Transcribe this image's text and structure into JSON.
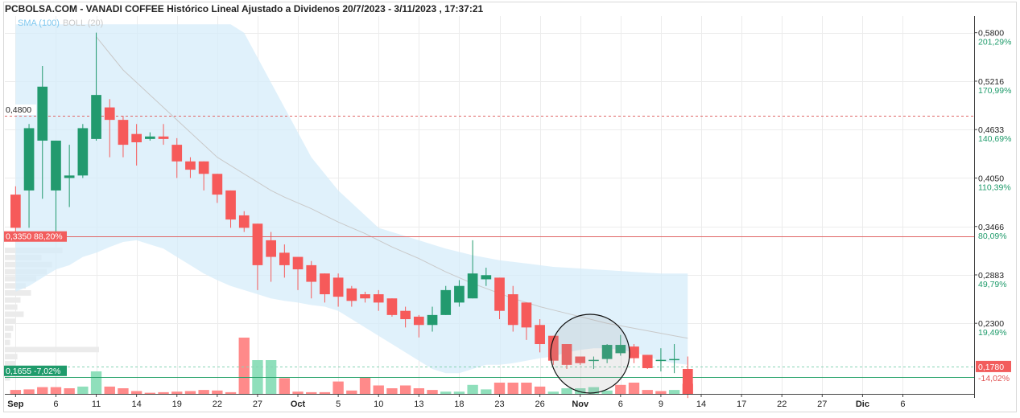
{
  "chart_data": {
    "type": "candlestick",
    "title": "PCBOLSA.COM - VANADI COFFEE Histórico Lineal Ajustado a Dividenos 20/7/2023 - 3/11/2023 , 17:37:21",
    "legend": {
      "sma": "SMA (100)",
      "boll": "BOLL (20)"
    },
    "ylim": [
      0.145,
      0.6
    ],
    "y_ticks": [
      {
        "price": 0.58,
        "label": "0,5800",
        "pct": "201,29%"
      },
      {
        "price": 0.5216,
        "label": "0,5216",
        "pct": "170,99%"
      },
      {
        "price": 0.4633,
        "label": "0,4633",
        "pct": "140,69%"
      },
      {
        "price": 0.405,
        "label": "0,4050",
        "pct": "110,39%"
      },
      {
        "price": 0.3466,
        "label": "0,3466",
        "pct": "80,09%"
      },
      {
        "price": 0.2883,
        "label": "0,2883",
        "pct": "49,79%"
      },
      {
        "price": 0.23,
        "label": "0,2300",
        "pct": "19,49%"
      }
    ],
    "x_ticks": [
      {
        "label": "Sep",
        "x": 0,
        "bold": true
      },
      {
        "label": "6",
        "x": 3
      },
      {
        "label": "11",
        "x": 6
      },
      {
        "label": "14",
        "x": 9
      },
      {
        "label": "19",
        "x": 12
      },
      {
        "label": "22",
        "x": 15
      },
      {
        "label": "27",
        "x": 18
      },
      {
        "label": "Oct",
        "x": 21,
        "bold": true
      },
      {
        "label": "5",
        "x": 24
      },
      {
        "label": "10",
        "x": 27
      },
      {
        "label": "13",
        "x": 30
      },
      {
        "label": "18",
        "x": 33
      },
      {
        "label": "23",
        "x": 36
      },
      {
        "label": "26",
        "x": 39
      },
      {
        "label": "Nov",
        "x": 42,
        "bold": true
      },
      {
        "label": "6",
        "x": 45
      },
      {
        "label": "9",
        "x": 48
      },
      {
        "label": "14",
        "x": 51
      },
      {
        "label": "17",
        "x": 54
      },
      {
        "label": "22",
        "x": 57
      },
      {
        "label": "27",
        "x": 60
      },
      {
        "label": "Dic",
        "x": 63,
        "bold": true
      },
      {
        "label": "6",
        "x": 66
      }
    ],
    "x_range": [
      -0.8,
      71.3
    ],
    "reference_lines": [
      {
        "price": 0.48,
        "label": "0,4800",
        "style": "dashed",
        "color": "#e06666"
      },
      {
        "price": 0.335,
        "label": "0,3350",
        "pct": "88,20%",
        "style": "solid",
        "color": "#e06666"
      },
      {
        "price": 0.1655,
        "label": "0,1655",
        "pct": "-7,02%",
        "style": "solid",
        "color": "#26a269"
      },
      {
        "price": 0.178,
        "label": "0,1780",
        "pct": "-14,02%",
        "style": "dashed",
        "color": "#86d3b4"
      }
    ],
    "candles": [
      {
        "o": 0.385,
        "h": 0.395,
        "l": 0.33,
        "c": 0.345
      },
      {
        "o": 0.39,
        "h": 0.47,
        "l": 0.345,
        "c": 0.465
      },
      {
        "o": 0.45,
        "h": 0.54,
        "l": 0.38,
        "c": 0.515
      },
      {
        "o": 0.39,
        "h": 0.45,
        "l": 0.34,
        "c": 0.45
      },
      {
        "o": 0.405,
        "h": 0.445,
        "l": 0.37,
        "c": 0.408
      },
      {
        "o": 0.408,
        "h": 0.47,
        "l": 0.405,
        "c": 0.465
      },
      {
        "o": 0.452,
        "h": 0.58,
        "l": 0.45,
        "c": 0.505
      },
      {
        "o": 0.49,
        "h": 0.5,
        "l": 0.43,
        "c": 0.475
      },
      {
        "o": 0.475,
        "h": 0.48,
        "l": 0.43,
        "c": 0.445
      },
      {
        "o": 0.458,
        "h": 0.47,
        "l": 0.42,
        "c": 0.448
      },
      {
        "o": 0.452,
        "h": 0.46,
        "l": 0.45,
        "c": 0.455
      },
      {
        "o": 0.455,
        "h": 0.47,
        "l": 0.445,
        "c": 0.452
      },
      {
        "o": 0.445,
        "h": 0.453,
        "l": 0.405,
        "c": 0.425
      },
      {
        "o": 0.425,
        "h": 0.43,
        "l": 0.405,
        "c": 0.415
      },
      {
        "o": 0.425,
        "h": 0.425,
        "l": 0.39,
        "c": 0.41
      },
      {
        "o": 0.41,
        "h": 0.41,
        "l": 0.375,
        "c": 0.385
      },
      {
        "o": 0.39,
        "h": 0.39,
        "l": 0.345,
        "c": 0.355
      },
      {
        "o": 0.36,
        "h": 0.365,
        "l": 0.34,
        "c": 0.345
      },
      {
        "o": 0.35,
        "h": 0.35,
        "l": 0.27,
        "c": 0.3
      },
      {
        "o": 0.33,
        "h": 0.34,
        "l": 0.28,
        "c": 0.31
      },
      {
        "o": 0.315,
        "h": 0.325,
        "l": 0.285,
        "c": 0.3
      },
      {
        "o": 0.31,
        "h": 0.31,
        "l": 0.27,
        "c": 0.295
      },
      {
        "o": 0.3,
        "h": 0.305,
        "l": 0.26,
        "c": 0.28
      },
      {
        "o": 0.29,
        "h": 0.29,
        "l": 0.255,
        "c": 0.265
      },
      {
        "o": 0.285,
        "h": 0.29,
        "l": 0.25,
        "c": 0.262
      },
      {
        "o": 0.272,
        "h": 0.275,
        "l": 0.25,
        "c": 0.257
      },
      {
        "o": 0.265,
        "h": 0.268,
        "l": 0.255,
        "c": 0.26
      },
      {
        "o": 0.265,
        "h": 0.27,
        "l": 0.245,
        "c": 0.255
      },
      {
        "o": 0.26,
        "h": 0.26,
        "l": 0.238,
        "c": 0.24
      },
      {
        "o": 0.245,
        "h": 0.25,
        "l": 0.225,
        "c": 0.235
      },
      {
        "o": 0.238,
        "h": 0.24,
        "l": 0.213,
        "c": 0.228
      },
      {
        "o": 0.228,
        "h": 0.25,
        "l": 0.22,
        "c": 0.24
      },
      {
        "o": 0.24,
        "h": 0.275,
        "l": 0.24,
        "c": 0.27
      },
      {
        "o": 0.255,
        "h": 0.282,
        "l": 0.25,
        "c": 0.275
      },
      {
        "o": 0.26,
        "h": 0.33,
        "l": 0.26,
        "c": 0.29
      },
      {
        "o": 0.283,
        "h": 0.297,
        "l": 0.275,
        "c": 0.288
      },
      {
        "o": 0.285,
        "h": 0.285,
        "l": 0.235,
        "c": 0.245
      },
      {
        "o": 0.265,
        "h": 0.275,
        "l": 0.22,
        "c": 0.228
      },
      {
        "o": 0.255,
        "h": 0.255,
        "l": 0.21,
        "c": 0.225
      },
      {
        "o": 0.228,
        "h": 0.235,
        "l": 0.195,
        "c": 0.205
      },
      {
        "o": 0.215,
        "h": 0.215,
        "l": 0.18,
        "c": 0.185
      },
      {
        "o": 0.205,
        "h": 0.205,
        "l": 0.175,
        "c": 0.18
      },
      {
        "o": 0.19,
        "h": 0.19,
        "l": 0.18,
        "c": 0.182
      },
      {
        "o": 0.185,
        "h": 0.19,
        "l": 0.175,
        "c": 0.186
      },
      {
        "o": 0.187,
        "h": 0.205,
        "l": 0.182,
        "c": 0.204
      },
      {
        "o": 0.194,
        "h": 0.216,
        "l": 0.191,
        "c": 0.204
      },
      {
        "o": 0.202,
        "h": 0.205,
        "l": 0.182,
        "c": 0.188
      },
      {
        "o": 0.192,
        "h": 0.192,
        "l": 0.175,
        "c": 0.176
      },
      {
        "o": 0.186,
        "h": 0.2,
        "l": 0.172,
        "c": 0.186
      },
      {
        "o": 0.187,
        "h": 0.205,
        "l": 0.17,
        "c": 0.187
      },
      {
        "o": 0.175,
        "h": 0.19,
        "l": 0.14,
        "c": 0.145
      }
    ],
    "volume_ratio": [
      0.07,
      0.08,
      0.12,
      0.12,
      0.1,
      0.13,
      0.4,
      0.13,
      0.1,
      0.05,
      0.02,
      0.03,
      0.04,
      0.05,
      0.07,
      0.06,
      0.03,
      1.0,
      0.6,
      0.6,
      0.28,
      0.04,
      0.03,
      0.03,
      0.22,
      0.06,
      0.3,
      0.15,
      0.1,
      0.15,
      0.1,
      0.07,
      0.04,
      0.04,
      0.16,
      0.08,
      0.2,
      0.2,
      0.2,
      0.13,
      0.04,
      0.1,
      0.1,
      0.12,
      0.06,
      0.16,
      0.2,
      0.07,
      0.05,
      0.07,
      0.18
    ],
    "volume_bull": [
      false,
      false,
      false,
      false,
      false,
      true,
      true,
      false,
      false,
      false,
      false,
      false,
      false,
      false,
      false,
      false,
      false,
      false,
      true,
      true,
      false,
      false,
      false,
      false,
      false,
      false,
      false,
      false,
      false,
      false,
      false,
      false,
      true,
      true,
      true,
      true,
      false,
      false,
      false,
      false,
      true,
      true,
      true,
      true,
      true,
      false,
      false,
      false,
      false,
      true,
      false
    ],
    "sma100": [
      0.575,
      0.555,
      0.535,
      0.52,
      0.505,
      0.49,
      0.475,
      0.46,
      0.445,
      0.43,
      0.42,
      0.41,
      0.4,
      0.39,
      0.382,
      0.375,
      0.368,
      0.36,
      0.352,
      0.345,
      0.338,
      0.33,
      0.322,
      0.315,
      0.308,
      0.3,
      0.292,
      0.285,
      0.278,
      0.272,
      0.266,
      0.26,
      0.255,
      0.25,
      0.246,
      0.242,
      0.238,
      0.234,
      0.23,
      0.227,
      0.224,
      0.221,
      0.218,
      0.215,
      0.212
    ],
    "sma100_start": 6,
    "boll_upper": [
      0.59,
      0.59,
      0.59,
      0.59,
      0.59,
      0.59,
      0.59,
      0.59,
      0.59,
      0.59,
      0.59,
      0.59,
      0.59,
      0.59,
      0.59,
      0.59,
      0.59,
      0.58,
      0.55,
      0.52,
      0.49,
      0.46,
      0.43,
      0.41,
      0.39,
      0.375,
      0.36,
      0.345,
      0.34,
      0.335,
      0.33,
      0.325,
      0.32,
      0.316,
      0.312,
      0.309,
      0.306,
      0.304,
      0.302,
      0.3,
      0.298,
      0.297,
      0.296,
      0.295,
      0.294,
      0.293,
      0.292,
      0.291,
      0.29,
      0.29,
      0.29
    ],
    "boll_lower": [
      0.268,
      0.275,
      0.285,
      0.295,
      0.3,
      0.31,
      0.315,
      0.322,
      0.328,
      0.33,
      0.325,
      0.32,
      0.31,
      0.3,
      0.29,
      0.282,
      0.275,
      0.27,
      0.265,
      0.26,
      0.257,
      0.255,
      0.252,
      0.25,
      0.245,
      0.235,
      0.225,
      0.215,
      0.205,
      0.195,
      0.185,
      0.175,
      0.17,
      0.17,
      0.175,
      0.18,
      0.18,
      0.182,
      0.185,
      0.188,
      0.19,
      0.195,
      0.198,
      0.2,
      0.2,
      0.198,
      0.195,
      0.19,
      0.185,
      0.182,
      0.18
    ]
  }
}
